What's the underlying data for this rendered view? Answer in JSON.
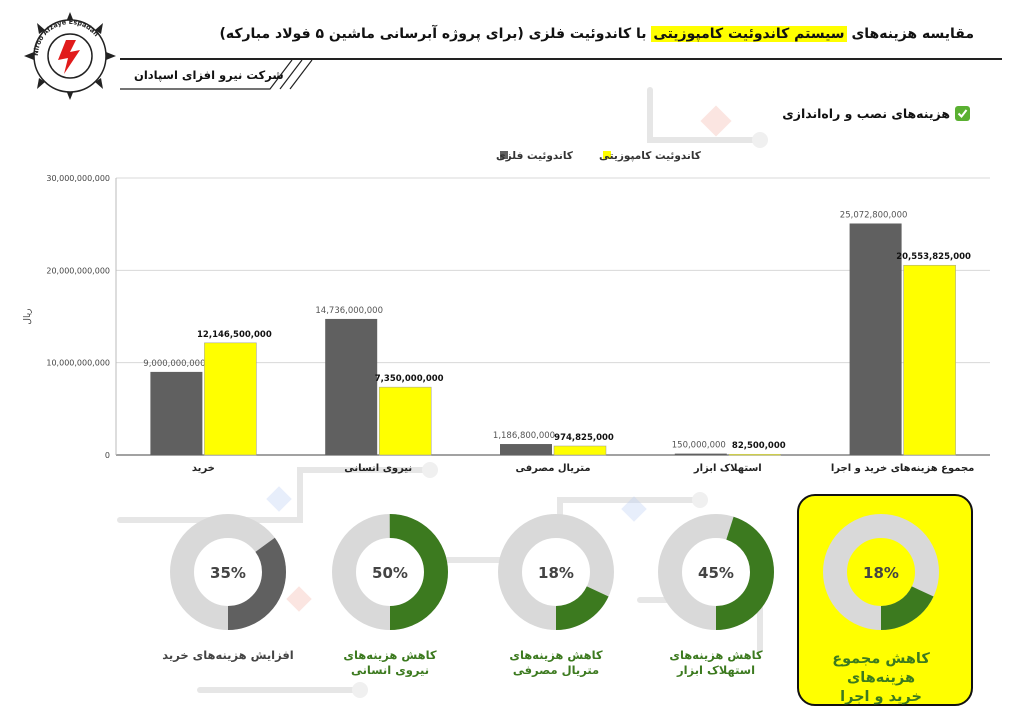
{
  "header": {
    "title_prefix": "مقایسه هزینه‌های",
    "title_highlight": "سیستم کاندوئیت کامپوزیتی",
    "title_suffix": "با کاندوئیت فلزی (برای پروژه آبرسانی ماشین ۵ فولاد مبارکه)",
    "company": "شرکت نیرو افزای اسپادان",
    "logo_text": "Niroo Afzaye Espadan"
  },
  "section": {
    "title": "هزینه‌های نصب و راه‌اندازی",
    "icon": "check-icon"
  },
  "colors": {
    "metal": "#606060",
    "composite": "#ffff00",
    "green": "#3c7a1f",
    "gray_light": "#d9d9d9",
    "highlight": "#ffff00"
  },
  "chart_data": {
    "type": "bar",
    "categories": [
      "خرید",
      "نیروی انسانی",
      "متریال مصرفی",
      "استهلاک ابزار",
      "مجموع هزینه‌های خرید و اجرا"
    ],
    "series": [
      {
        "name": "کاندوئیت فلزی",
        "values": [
          9000000000,
          14736000000,
          1186800000,
          150000000,
          25072800000
        ],
        "labels": [
          "9,000,000,000",
          "14,736,000,000",
          "1,186,800,000",
          "150,000,000",
          "25,072,800,000"
        ]
      },
      {
        "name": "کاندوئیت کامپوزیتی",
        "values": [
          12146500000,
          7350000000,
          974825000,
          82500000,
          20553825000
        ],
        "labels": [
          "12,146,500,000",
          "7,350,000,000",
          "974,825,000",
          "82,500,000",
          "20,553,825,000"
        ]
      }
    ],
    "ylabel": "ریال",
    "ylim": [
      0,
      30000000000
    ],
    "yticks": [
      0,
      10000000000,
      20000000000,
      30000000000
    ],
    "ytick_labels": [
      "0",
      "10,000,000,000",
      "20,000,000,000",
      "30,000,000,000"
    ],
    "grid": true,
    "legend": "top-center"
  },
  "donuts": [
    {
      "value": 35,
      "label_text": "35%",
      "caption": [
        "افزایش هزینه‌های خرید"
      ],
      "fill": "#606060",
      "caption_color": "#444444"
    },
    {
      "value": 50,
      "label_text": "50%",
      "caption": [
        "کاهش هزینه‌های",
        "نیروی انسانی"
      ],
      "fill": "#3c7a1f",
      "caption_color": "#3c7a1f"
    },
    {
      "value": 18,
      "label_text": "18%",
      "caption": [
        "کاهش هزینه‌های",
        "متریال مصرفی"
      ],
      "fill": "#3c7a1f",
      "caption_color": "#3c7a1f"
    },
    {
      "value": 45,
      "label_text": "45%",
      "caption": [
        "کاهش هزینه‌های",
        "استهلاک ابزار"
      ],
      "fill": "#3c7a1f",
      "caption_color": "#3c7a1f"
    },
    {
      "value": 18,
      "label_text": "18%",
      "caption": [
        "کاهش مجموع هزینه‌های",
        "خرید و اجرا"
      ],
      "fill": "#3c7a1f",
      "caption_color": "#3c7a1f"
    }
  ]
}
